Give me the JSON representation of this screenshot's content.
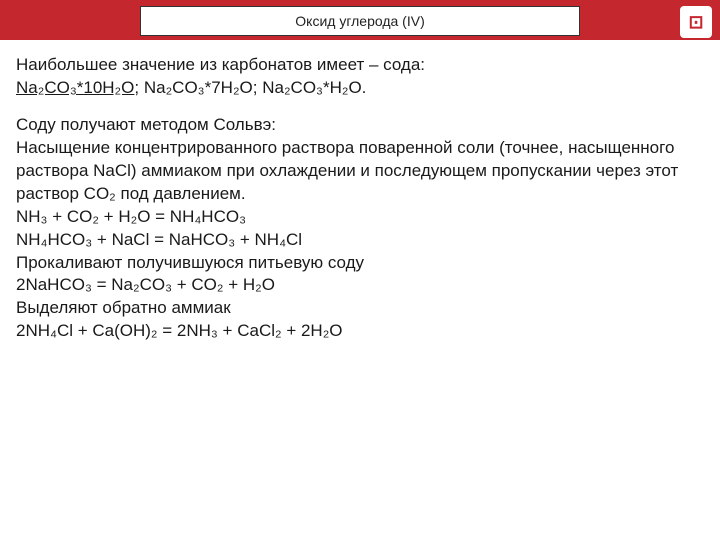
{
  "header": {
    "title": "Оксид углерода (IV)"
  },
  "body": {
    "p1_lead": "Наибольшее значение из карбонатов имеет – сода: ",
    "p1_f1": "Na₂CO₃*10H₂O",
    "p1_sep1": ";  ",
    "p1_f2": "Na₂CO₃*7H₂O; Na₂CO₃*H₂O.",
    "p2": "Соду получают методом Сольвэ:",
    "p3": "Насыщение концентрированного раствора поваренной соли (точнее, насыщенного раствора NaCl) аммиаком при охлаждении и последующем пропускании через этот раствор CO₂ под давлением.",
    "eq1": "NH₃ + CO₂ + H₂O = NH₄HCO₃",
    "eq2": "NH₄HCO₃ + NaCl = NaHCO₃ + NH₄Cl",
    "p4": "Прокаливают получившуюся питьевую соду",
    "eq3": "2NaHCO₃ = Na₂CO₃ + CO₂ + H₂O",
    "p5": "Выделяют обратно аммиак",
    "eq4": "2NH₄Cl + Ca(OH)₂ = 2NH₃ + CaCl₂ + 2H₂O"
  }
}
